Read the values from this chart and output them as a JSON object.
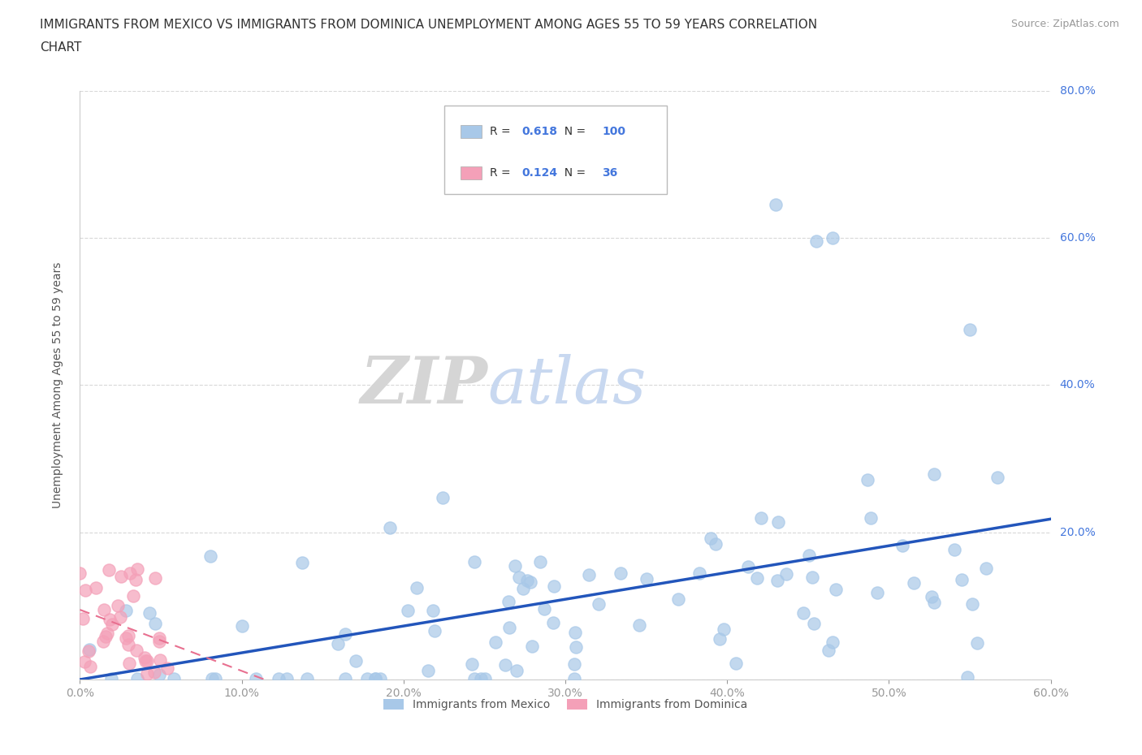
{
  "title_line1": "IMMIGRANTS FROM MEXICO VS IMMIGRANTS FROM DOMINICA UNEMPLOYMENT AMONG AGES 55 TO 59 YEARS CORRELATION",
  "title_line2": "CHART",
  "source": "Source: ZipAtlas.com",
  "ylabel": "Unemployment Among Ages 55 to 59 years",
  "xlim": [
    0.0,
    0.6
  ],
  "ylim": [
    0.0,
    0.8
  ],
  "xticks": [
    0.0,
    0.1,
    0.2,
    0.3,
    0.4,
    0.5,
    0.6
  ],
  "yticks": [
    0.0,
    0.2,
    0.4,
    0.6,
    0.8
  ],
  "mexico_R": 0.618,
  "mexico_N": 100,
  "dominica_R": 0.124,
  "dominica_N": 36,
  "mexico_color": "#a8c8e8",
  "dominica_color": "#f4a0b8",
  "mexico_line_color": "#2255bb",
  "dominica_line_color": "#f4a0b8",
  "label_color": "#4477dd",
  "watermark_zip": "ZIP",
  "watermark_atlas": "atlas",
  "watermark_color": "#d8d8d8",
  "background_color": "#ffffff",
  "grid_color": "#d8d8d8",
  "tick_label_color": "#4477dd",
  "mexico_label": "Immigrants from Mexico",
  "dominica_label": "Immigrants from Dominica"
}
